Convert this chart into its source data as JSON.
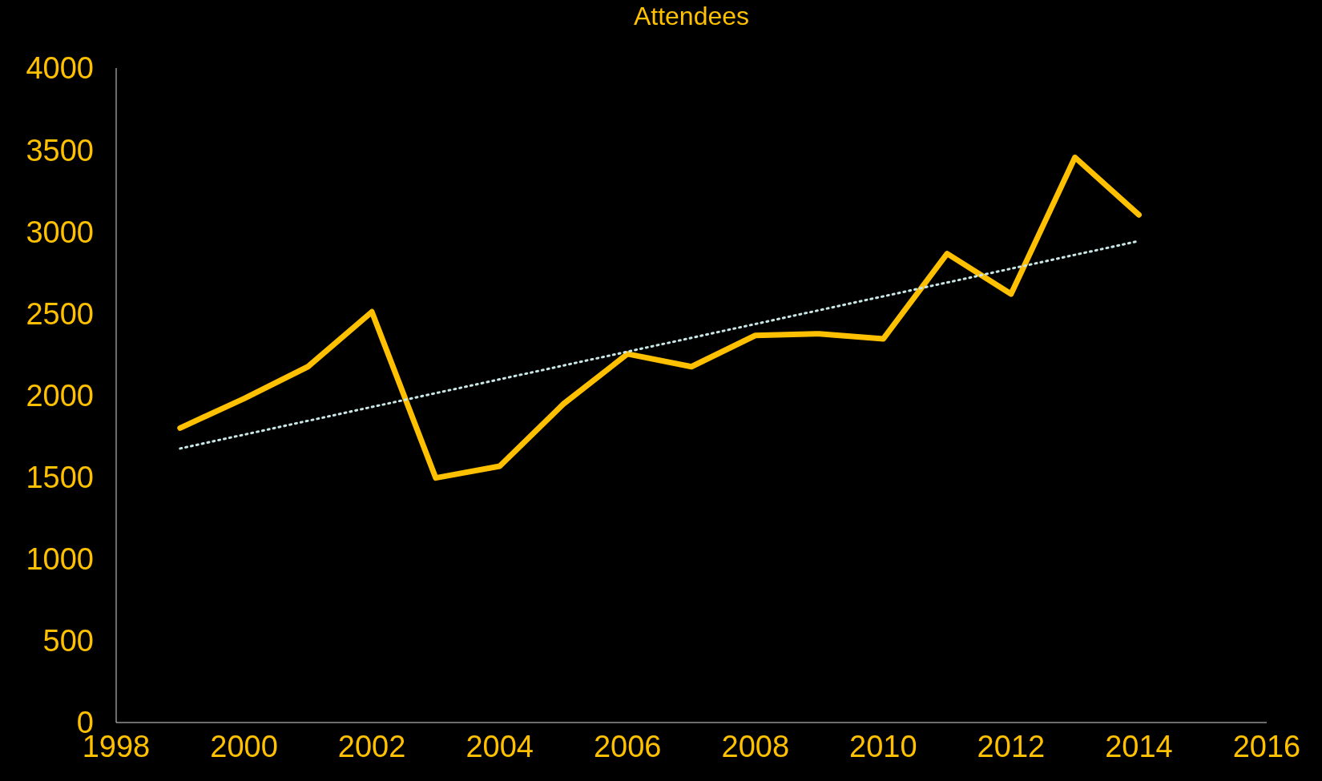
{
  "chart_data": {
    "type": "line",
    "title": "Attendees",
    "x": [
      1999,
      2000,
      2001,
      2002,
      2003,
      2004,
      2005,
      2006,
      2007,
      2008,
      2009,
      2010,
      2011,
      2012,
      2013,
      2014
    ],
    "series": [
      {
        "color": "#ffc000",
        "values": [
          1800,
          1980,
          2175,
          2510,
          1495,
          1567,
          1948,
          2253,
          2175,
          2366,
          2376,
          2345,
          2866,
          2619,
          3454,
          3103
        ]
      },
      {
        "type": "line",
        "x": [
          1999,
          2014
        ],
        "color": "#c8e6e6",
        "line_style": "dotted",
        "values": [
          1675,
          2943
        ]
      }
    ],
    "xlim": [
      1998,
      2016
    ],
    "xticks": [
      1998,
      2000,
      2002,
      2004,
      2006,
      2008,
      2010,
      2012,
      2014,
      2016
    ],
    "ylim": [
      0,
      4000
    ],
    "yticks": [
      0,
      500,
      1000,
      1500,
      2000,
      2500,
      3000,
      3500,
      4000
    ],
    "grid": false,
    "marker": "none"
  }
}
